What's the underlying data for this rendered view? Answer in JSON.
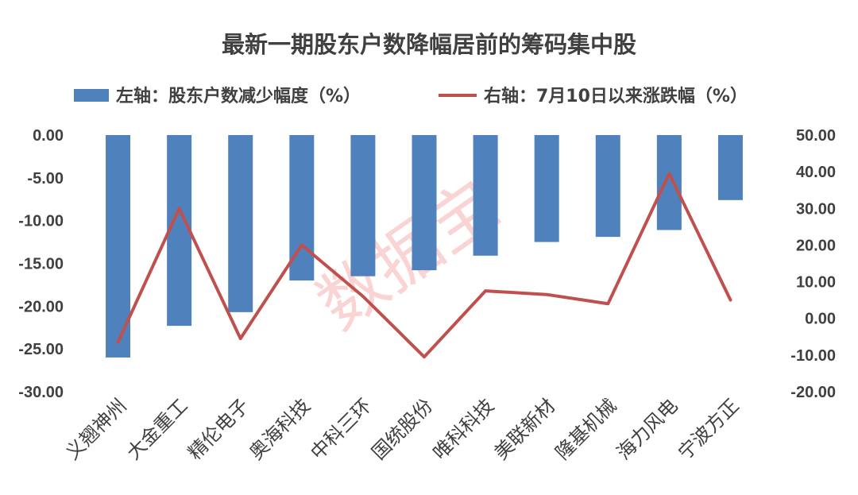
{
  "chart_data": {
    "type": "bar",
    "title": "最新一期股东户数降幅居前的筹码集中股",
    "categories": [
      "义翘神州",
      "大金重工",
      "精伦电子",
      "奥海科技",
      "中科三环",
      "国统股份",
      "唯科科技",
      "美联新材",
      "隆基机械",
      "海力风电",
      "宁波方正"
    ],
    "series": [
      {
        "name": "左轴：股东户数减少幅度（%）",
        "type": "bar",
        "axis": "left",
        "color": "#4f81bd",
        "values": [
          -26.0,
          -22.3,
          -20.7,
          -17.0,
          -16.5,
          -15.8,
          -14.1,
          -12.5,
          -11.9,
          -11.1,
          -7.6
        ]
      },
      {
        "name": "右轴：7月10日以来涨跌幅（%）",
        "type": "line",
        "axis": "right",
        "color": "#c0504d",
        "values": [
          -6.5,
          30.0,
          -5.5,
          20.0,
          6.0,
          -10.5,
          7.5,
          6.5,
          4.0,
          39.5,
          5.0
        ]
      }
    ],
    "y_left": {
      "ylim": [
        -30,
        0
      ],
      "ticks": [
        "0.00",
        "-5.00",
        "-10.00",
        "-15.00",
        "-20.00",
        "-25.00",
        "-30.00"
      ]
    },
    "y_right": {
      "ylim": [
        -20,
        50
      ],
      "ticks": [
        "50.00",
        "40.00",
        "30.00",
        "20.00",
        "10.00",
        "0.00",
        "-10.00",
        "-20.00"
      ]
    },
    "legend_position": "top",
    "grid": false
  },
  "watermark": "数据宝"
}
